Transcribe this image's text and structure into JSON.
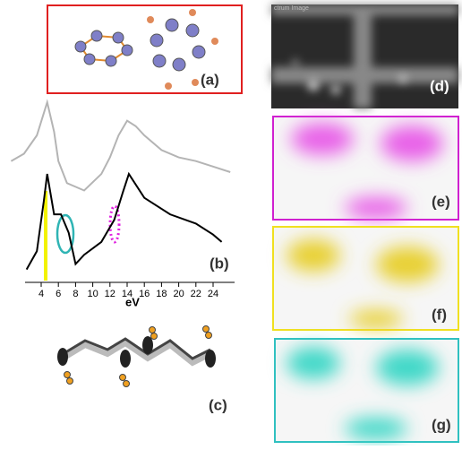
{
  "chart_data": {
    "type": "line",
    "xlabel": "eV",
    "xlim": [
      0.5,
      26.5
    ],
    "ylim": [
      0,
      1
    ],
    "xticks": [
      4,
      6,
      8,
      10,
      12,
      14,
      16,
      18,
      20,
      22,
      24
    ],
    "series": [
      {
        "color": "#b4b4b4",
        "x": [
          0.5,
          2,
          3.5,
          4.7,
          5.5,
          6,
          7,
          9,
          11,
          12,
          13,
          14,
          15,
          16,
          18,
          20,
          22,
          24,
          26
        ],
        "values": [
          0.66,
          0.7,
          0.8,
          0.98,
          0.82,
          0.66,
          0.54,
          0.5,
          0.59,
          0.68,
          0.8,
          0.88,
          0.85,
          0.8,
          0.72,
          0.68,
          0.66,
          0.63,
          0.6
        ]
      },
      {
        "color": "#000000",
        "x": [
          2.3,
          3.5,
          4.3,
          4.7,
          5.5,
          6.3,
          7.2,
          8,
          9,
          11,
          12.5,
          13.5,
          14.2,
          16,
          19,
          22,
          24,
          25
        ],
        "values": [
          0.07,
          0.17,
          0.44,
          0.59,
          0.37,
          0.37,
          0.27,
          0.1,
          0.15,
          0.22,
          0.34,
          0.49,
          0.59,
          0.46,
          0.37,
          0.32,
          0.26,
          0.22
        ]
      }
    ]
  },
  "panels": {
    "a": "(a)",
    "b": "(b)",
    "c": "(c)",
    "d": "(d)",
    "e": "(e)",
    "f": "(f)",
    "g": "(g)"
  },
  "image_caption": "ctrum Image"
}
